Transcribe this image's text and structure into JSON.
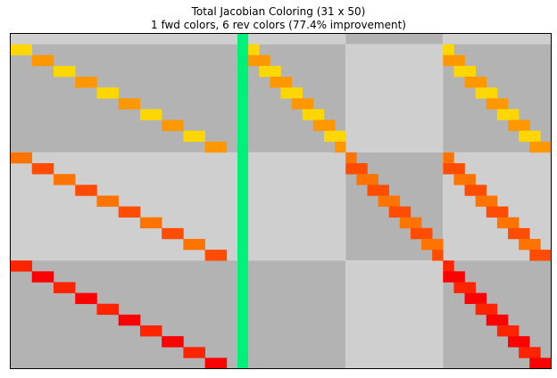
{
  "chart_data": {
    "type": "heatmap",
    "title": "Total Jacobian Coloring (31 x 50)",
    "subtitle": "1 fwd colors, 6 rev colors (77.4% improvement)",
    "rows": 31,
    "cols": 50,
    "grid": false,
    "colors": {
      "light_block": "#cfcfcf",
      "dark_block": "#b3b3b3",
      "fwd_color_1": "#00f07a",
      "rev_colors": [
        "#ffd700",
        "#ff9800",
        "#ff7400",
        "#ff4c00",
        "#ff2400",
        "#ff0000"
      ]
    },
    "col_groups": [
      {
        "start": 0,
        "end": 21
      },
      {
        "start": 21,
        "end": 22
      },
      {
        "start": 22,
        "end": 31
      },
      {
        "start": 31,
        "end": 40
      },
      {
        "start": 40,
        "end": 50
      }
    ],
    "row_groups": [
      {
        "start": 0,
        "end": 1
      },
      {
        "start": 1,
        "end": 11
      },
      {
        "start": 11,
        "end": 21
      },
      {
        "start": 21,
        "end": 31
      }
    ],
    "block_shades": [
      [
        "light",
        "light",
        "light",
        "dark",
        "light"
      ],
      [
        "dark",
        "dark",
        "dark",
        "light",
        "dark"
      ],
      [
        "light",
        "light",
        "light",
        "dark",
        "light"
      ],
      [
        "dark",
        "dark",
        "dark",
        "light",
        "dark"
      ]
    ],
    "fwd_column": 21,
    "rev_cells": [
      {
        "row": 1,
        "col": 0,
        "c": 0
      },
      {
        "row": 1,
        "col": 1,
        "c": 0
      },
      {
        "row": 2,
        "col": 2,
        "c": 1
      },
      {
        "row": 2,
        "col": 3,
        "c": 1
      },
      {
        "row": 3,
        "col": 4,
        "c": 0
      },
      {
        "row": 3,
        "col": 5,
        "c": 0
      },
      {
        "row": 4,
        "col": 6,
        "c": 1
      },
      {
        "row": 4,
        "col": 7,
        "c": 1
      },
      {
        "row": 5,
        "col": 8,
        "c": 0
      },
      {
        "row": 5,
        "col": 9,
        "c": 0
      },
      {
        "row": 6,
        "col": 10,
        "c": 1
      },
      {
        "row": 6,
        "col": 11,
        "c": 1
      },
      {
        "row": 7,
        "col": 12,
        "c": 0
      },
      {
        "row": 7,
        "col": 13,
        "c": 0
      },
      {
        "row": 8,
        "col": 14,
        "c": 1
      },
      {
        "row": 8,
        "col": 15,
        "c": 1
      },
      {
        "row": 9,
        "col": 16,
        "c": 0
      },
      {
        "row": 9,
        "col": 17,
        "c": 0
      },
      {
        "row": 10,
        "col": 18,
        "c": 1
      },
      {
        "row": 10,
        "col": 19,
        "c": 1
      },
      {
        "row": 1,
        "col": 22,
        "c": 0
      },
      {
        "row": 2,
        "col": 22,
        "c": 1
      },
      {
        "row": 2,
        "col": 23,
        "c": 1
      },
      {
        "row": 3,
        "col": 23,
        "c": 0
      },
      {
        "row": 3,
        "col": 24,
        "c": 0
      },
      {
        "row": 4,
        "col": 24,
        "c": 1
      },
      {
        "row": 4,
        "col": 25,
        "c": 1
      },
      {
        "row": 5,
        "col": 25,
        "c": 0
      },
      {
        "row": 5,
        "col": 26,
        "c": 0
      },
      {
        "row": 6,
        "col": 26,
        "c": 1
      },
      {
        "row": 6,
        "col": 27,
        "c": 1
      },
      {
        "row": 7,
        "col": 27,
        "c": 0
      },
      {
        "row": 7,
        "col": 28,
        "c": 0
      },
      {
        "row": 8,
        "col": 28,
        "c": 1
      },
      {
        "row": 8,
        "col": 29,
        "c": 1
      },
      {
        "row": 9,
        "col": 29,
        "c": 0
      },
      {
        "row": 9,
        "col": 30,
        "c": 0
      },
      {
        "row": 10,
        "col": 30,
        "c": 1
      },
      {
        "row": 1,
        "col": 40,
        "c": 0
      },
      {
        "row": 2,
        "col": 40,
        "c": 1
      },
      {
        "row": 2,
        "col": 41,
        "c": 1
      },
      {
        "row": 3,
        "col": 41,
        "c": 0
      },
      {
        "row": 3,
        "col": 42,
        "c": 0
      },
      {
        "row": 4,
        "col": 42,
        "c": 1
      },
      {
        "row": 4,
        "col": 43,
        "c": 1
      },
      {
        "row": 5,
        "col": 43,
        "c": 0
      },
      {
        "row": 5,
        "col": 44,
        "c": 0
      },
      {
        "row": 6,
        "col": 44,
        "c": 1
      },
      {
        "row": 6,
        "col": 45,
        "c": 1
      },
      {
        "row": 7,
        "col": 45,
        "c": 0
      },
      {
        "row": 7,
        "col": 46,
        "c": 0
      },
      {
        "row": 8,
        "col": 46,
        "c": 1
      },
      {
        "row": 8,
        "col": 47,
        "c": 1
      },
      {
        "row": 9,
        "col": 47,
        "c": 0
      },
      {
        "row": 9,
        "col": 48,
        "c": 0
      },
      {
        "row": 10,
        "col": 48,
        "c": 1
      },
      {
        "row": 10,
        "col": 49,
        "c": 1
      },
      {
        "row": 11,
        "col": 0,
        "c": 2
      },
      {
        "row": 11,
        "col": 1,
        "c": 2
      },
      {
        "row": 12,
        "col": 2,
        "c": 3
      },
      {
        "row": 12,
        "col": 3,
        "c": 3
      },
      {
        "row": 13,
        "col": 4,
        "c": 2
      },
      {
        "row": 13,
        "col": 5,
        "c": 2
      },
      {
        "row": 14,
        "col": 6,
        "c": 3
      },
      {
        "row": 14,
        "col": 7,
        "c": 3
      },
      {
        "row": 15,
        "col": 8,
        "c": 2
      },
      {
        "row": 15,
        "col": 9,
        "c": 2
      },
      {
        "row": 16,
        "col": 10,
        "c": 3
      },
      {
        "row": 16,
        "col": 11,
        "c": 3
      },
      {
        "row": 17,
        "col": 12,
        "c": 2
      },
      {
        "row": 17,
        "col": 13,
        "c": 2
      },
      {
        "row": 18,
        "col": 14,
        "c": 3
      },
      {
        "row": 18,
        "col": 15,
        "c": 3
      },
      {
        "row": 19,
        "col": 16,
        "c": 2
      },
      {
        "row": 19,
        "col": 17,
        "c": 2
      },
      {
        "row": 20,
        "col": 18,
        "c": 3
      },
      {
        "row": 20,
        "col": 19,
        "c": 3
      },
      {
        "row": 11,
        "col": 31,
        "c": 2
      },
      {
        "row": 12,
        "col": 31,
        "c": 3
      },
      {
        "row": 12,
        "col": 32,
        "c": 3
      },
      {
        "row": 13,
        "col": 32,
        "c": 2
      },
      {
        "row": 13,
        "col": 33,
        "c": 2
      },
      {
        "row": 14,
        "col": 33,
        "c": 3
      },
      {
        "row": 14,
        "col": 34,
        "c": 3
      },
      {
        "row": 15,
        "col": 34,
        "c": 2
      },
      {
        "row": 15,
        "col": 35,
        "c": 2
      },
      {
        "row": 16,
        "col": 35,
        "c": 3
      },
      {
        "row": 16,
        "col": 36,
        "c": 3
      },
      {
        "row": 17,
        "col": 36,
        "c": 2
      },
      {
        "row": 17,
        "col": 37,
        "c": 2
      },
      {
        "row": 18,
        "col": 37,
        "c": 3
      },
      {
        "row": 18,
        "col": 38,
        "c": 3
      },
      {
        "row": 19,
        "col": 38,
        "c": 2
      },
      {
        "row": 19,
        "col": 39,
        "c": 2
      },
      {
        "row": 20,
        "col": 39,
        "c": 3
      },
      {
        "row": 11,
        "col": 40,
        "c": 2
      },
      {
        "row": 12,
        "col": 40,
        "c": 3
      },
      {
        "row": 12,
        "col": 41,
        "c": 3
      },
      {
        "row": 13,
        "col": 41,
        "c": 2
      },
      {
        "row": 13,
        "col": 42,
        "c": 2
      },
      {
        "row": 14,
        "col": 42,
        "c": 3
      },
      {
        "row": 14,
        "col": 43,
        "c": 3
      },
      {
        "row": 15,
        "col": 43,
        "c": 2
      },
      {
        "row": 15,
        "col": 44,
        "c": 2
      },
      {
        "row": 16,
        "col": 44,
        "c": 3
      },
      {
        "row": 16,
        "col": 45,
        "c": 3
      },
      {
        "row": 17,
        "col": 45,
        "c": 2
      },
      {
        "row": 17,
        "col": 46,
        "c": 2
      },
      {
        "row": 18,
        "col": 46,
        "c": 3
      },
      {
        "row": 18,
        "col": 47,
        "c": 3
      },
      {
        "row": 19,
        "col": 47,
        "c": 2
      },
      {
        "row": 19,
        "col": 48,
        "c": 2
      },
      {
        "row": 20,
        "col": 48,
        "c": 3
      },
      {
        "row": 20,
        "col": 49,
        "c": 3
      },
      {
        "row": 21,
        "col": 0,
        "c": 4
      },
      {
        "row": 21,
        "col": 1,
        "c": 4
      },
      {
        "row": 22,
        "col": 2,
        "c": 5
      },
      {
        "row": 22,
        "col": 3,
        "c": 5
      },
      {
        "row": 23,
        "col": 4,
        "c": 4
      },
      {
        "row": 23,
        "col": 5,
        "c": 4
      },
      {
        "row": 24,
        "col": 6,
        "c": 5
      },
      {
        "row": 24,
        "col": 7,
        "c": 5
      },
      {
        "row": 25,
        "col": 8,
        "c": 4
      },
      {
        "row": 25,
        "col": 9,
        "c": 4
      },
      {
        "row": 26,
        "col": 10,
        "c": 5
      },
      {
        "row": 26,
        "col": 11,
        "c": 5
      },
      {
        "row": 27,
        "col": 12,
        "c": 4
      },
      {
        "row": 27,
        "col": 13,
        "c": 4
      },
      {
        "row": 28,
        "col": 14,
        "c": 5
      },
      {
        "row": 28,
        "col": 15,
        "c": 5
      },
      {
        "row": 29,
        "col": 16,
        "c": 4
      },
      {
        "row": 29,
        "col": 17,
        "c": 4
      },
      {
        "row": 30,
        "col": 18,
        "c": 5
      },
      {
        "row": 30,
        "col": 19,
        "c": 5
      },
      {
        "row": 21,
        "col": 40,
        "c": 4
      },
      {
        "row": 22,
        "col": 40,
        "c": 5
      },
      {
        "row": 22,
        "col": 41,
        "c": 5
      },
      {
        "row": 23,
        "col": 41,
        "c": 4
      },
      {
        "row": 23,
        "col": 42,
        "c": 4
      },
      {
        "row": 24,
        "col": 42,
        "c": 5
      },
      {
        "row": 24,
        "col": 43,
        "c": 5
      },
      {
        "row": 25,
        "col": 43,
        "c": 4
      },
      {
        "row": 25,
        "col": 44,
        "c": 4
      },
      {
        "row": 26,
        "col": 44,
        "c": 5
      },
      {
        "row": 26,
        "col": 45,
        "c": 5
      },
      {
        "row": 27,
        "col": 45,
        "c": 4
      },
      {
        "row": 27,
        "col": 46,
        "c": 4
      },
      {
        "row": 28,
        "col": 46,
        "c": 5
      },
      {
        "row": 28,
        "col": 47,
        "c": 5
      },
      {
        "row": 29,
        "col": 47,
        "c": 4
      },
      {
        "row": 29,
        "col": 48,
        "c": 4
      },
      {
        "row": 30,
        "col": 48,
        "c": 5
      },
      {
        "row": 30,
        "col": 49,
        "c": 5
      }
    ]
  }
}
